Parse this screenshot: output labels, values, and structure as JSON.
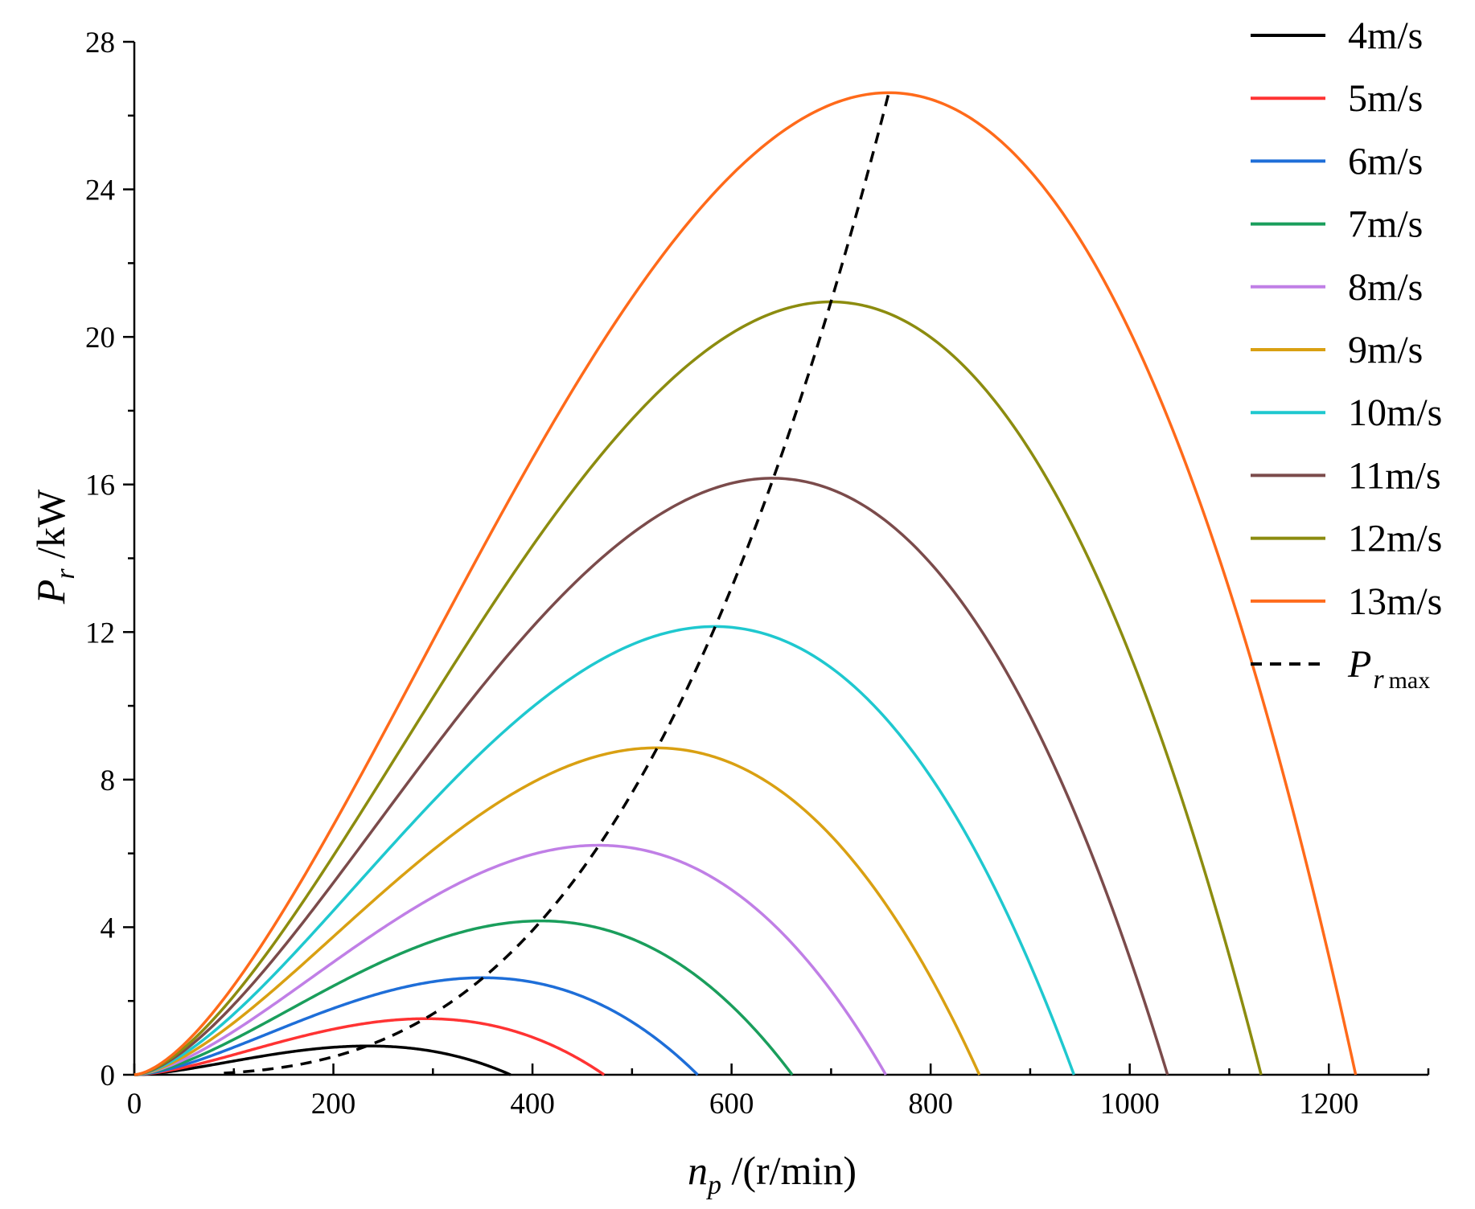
{
  "chart_data": {
    "type": "line",
    "xlabel": {
      "var": "n",
      "sub": "p",
      "unit": " /(r/min)"
    },
    "ylabel": {
      "var": "P",
      "sub": "r",
      "unit": " /kW"
    },
    "xlim": [
      0,
      1300
    ],
    "ylim": [
      0,
      28
    ],
    "xticks": [
      0,
      200,
      400,
      600,
      800,
      1000,
      1200
    ],
    "xtick_labels": [
      "0",
      "200",
      "400",
      "600",
      "800",
      "1000",
      "1200"
    ],
    "yticks": [
      0,
      4,
      8,
      12,
      16,
      20,
      24,
      28
    ],
    "ytick_labels": [
      "0",
      "4",
      "8",
      "12",
      "16",
      "20",
      "24",
      "28"
    ],
    "legend_position": "top-right",
    "series": [
      {
        "name": "4m/s",
        "color": "#000000",
        "peak_x": 235,
        "peak_y": 0.78,
        "zero_x": 378
      },
      {
        "name": "5m/s",
        "color": "#FF3333",
        "peak_x": 293,
        "peak_y": 1.52,
        "zero_x": 472
      },
      {
        "name": "6m/s",
        "color": "#1E6ED8",
        "peak_x": 350,
        "peak_y": 2.63,
        "zero_x": 566
      },
      {
        "name": "7m/s",
        "color": "#1A9E5C",
        "peak_x": 408,
        "peak_y": 4.17,
        "zero_x": 661
      },
      {
        "name": "8m/s",
        "color": "#C07FE6",
        "peak_x": 466,
        "peak_y": 6.22,
        "zero_x": 755
      },
      {
        "name": "9m/s",
        "color": "#D9A012",
        "peak_x": 524,
        "peak_y": 8.86,
        "zero_x": 849
      },
      {
        "name": "10m/s",
        "color": "#1FC8CF",
        "peak_x": 583,
        "peak_y": 12.15,
        "zero_x": 944
      },
      {
        "name": "11m/s",
        "color": "#7B4B4B",
        "peak_x": 641,
        "peak_y": 16.17,
        "zero_x": 1038
      },
      {
        "name": "12m/s",
        "color": "#8C8C0F",
        "peak_x": 700,
        "peak_y": 20.95,
        "zero_x": 1132
      },
      {
        "name": "13m/s",
        "color": "#FF6A1A",
        "peak_x": 758,
        "peak_y": 26.62,
        "zero_x": 1227
      }
    ],
    "envelope": {
      "var": "P",
      "sub": "r",
      "sub2": "max",
      "color": "#000000",
      "style": "dashed",
      "k": 26.62,
      "x_ref": 758
    }
  }
}
